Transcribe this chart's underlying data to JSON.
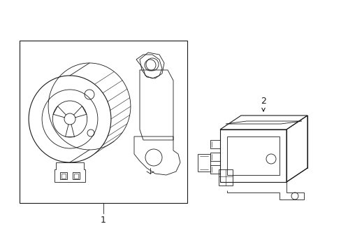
{
  "bg_color": "#ffffff",
  "line_color": "#1a1a1a",
  "line_width": 0.8,
  "thin_line": 0.6,
  "fig_width": 4.89,
  "fig_height": 3.6,
  "label_1": "1",
  "label_2": "2"
}
